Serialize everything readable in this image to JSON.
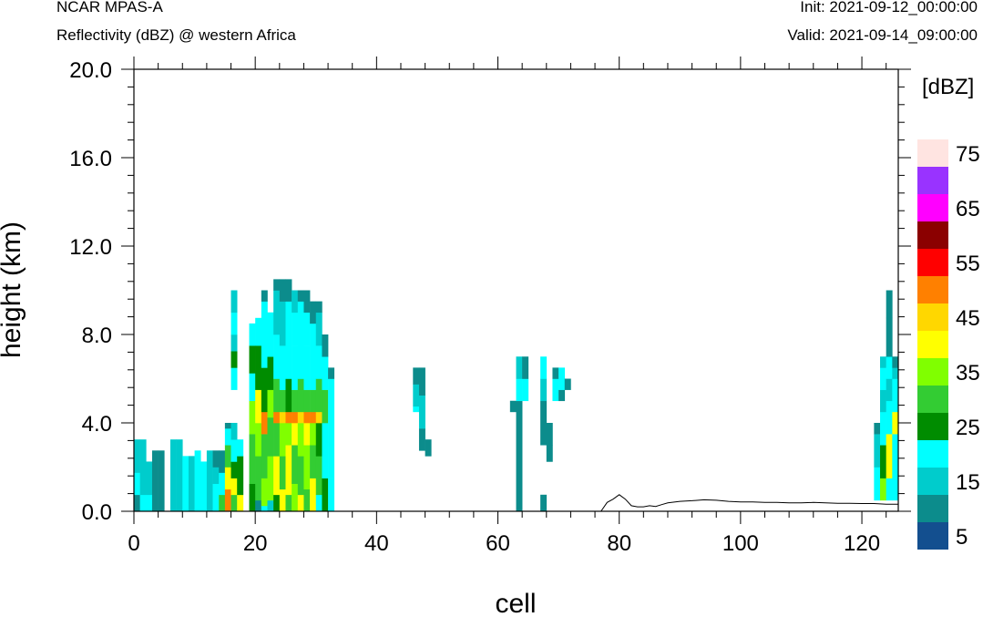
{
  "header": {
    "model": "NCAR MPAS-A",
    "field": "Reflectivity (dBZ) @ western Africa",
    "init": "Init: 2021-09-12_00:00:00",
    "valid": "Valid: 2021-09-14_09:00:00"
  },
  "colorbar": {
    "title": "[dBZ]",
    "labels": [
      "5",
      "15",
      "25",
      "35",
      "45",
      "55",
      "65",
      "75"
    ],
    "colors": [
      "#134f8f",
      "#0c8c8c",
      "#00cccc",
      "#00ffff",
      "#008c00",
      "#33cc33",
      "#80ff00",
      "#ffff00",
      "#ffd700",
      "#ff8000",
      "#ff0000",
      "#8b0000",
      "#ff00ff",
      "#9933ff",
      "#ffe4e1"
    ]
  },
  "chart_data": {
    "type": "heatmap",
    "xlabel": "cell",
    "ylabel": "height (km)",
    "xlim": [
      0,
      126
    ],
    "ylim": [
      0,
      20
    ],
    "x_ticks": [
      "0",
      "20",
      "40",
      "60",
      "80",
      "100",
      "120"
    ],
    "y_ticks": [
      "0.0",
      "4.0",
      "8.0",
      "12.0",
      "16.0",
      "20.0"
    ],
    "cell_height_km": 0.25,
    "value_unit": "dBZ",
    "columns": [
      {
        "x": 0,
        "segments": [
          [
            0,
            3,
            5
          ],
          [
            3,
            7,
            15
          ],
          [
            7,
            13,
            10
          ]
        ]
      },
      {
        "x": 1,
        "segments": [
          [
            0,
            3,
            15
          ],
          [
            3,
            13,
            10
          ]
        ]
      },
      {
        "x": 2,
        "segments": [
          [
            0,
            3,
            15
          ],
          [
            3,
            9,
            10
          ]
        ]
      },
      {
        "x": 3,
        "segments": [
          [
            0,
            11,
            5
          ]
        ]
      },
      {
        "x": 4,
        "segments": [
          [
            0,
            11,
            5
          ]
        ]
      },
      {
        "x": 6,
        "segments": [
          [
            0,
            13,
            10
          ]
        ]
      },
      {
        "x": 7,
        "segments": [
          [
            0,
            13,
            10
          ]
        ]
      },
      {
        "x": 8,
        "segments": [
          [
            0,
            10,
            15
          ]
        ]
      },
      {
        "x": 9,
        "segments": [
          [
            0,
            10,
            10
          ]
        ]
      },
      {
        "x": 10,
        "segments": [
          [
            0,
            11,
            15
          ]
        ]
      },
      {
        "x": 11,
        "segments": [
          [
            0,
            9,
            15
          ]
        ]
      },
      {
        "x": 12,
        "segments": [
          [
            0,
            11,
            10
          ]
        ]
      },
      {
        "x": 13,
        "segments": [
          [
            0,
            5,
            15
          ],
          [
            5,
            8,
            10
          ],
          [
            8,
            11,
            5
          ]
        ]
      },
      {
        "x": 14,
        "segments": [
          [
            0,
            3,
            25
          ],
          [
            3,
            7,
            15
          ],
          [
            7,
            11,
            5
          ]
        ]
      },
      {
        "x": 15,
        "segments": [
          [
            0,
            4,
            45
          ],
          [
            4,
            8,
            35
          ],
          [
            8,
            12,
            25
          ],
          [
            12,
            15,
            15
          ],
          [
            15,
            16,
            5
          ]
        ]
      },
      {
        "x": 16,
        "segments": [
          [
            0,
            3,
            25
          ],
          [
            3,
            6,
            35
          ],
          [
            6,
            9,
            20
          ],
          [
            9,
            13,
            15
          ],
          [
            13,
            16,
            10
          ],
          [
            22,
            26,
            15
          ],
          [
            26,
            29,
            20
          ],
          [
            29,
            32,
            10
          ],
          [
            32,
            36,
            15
          ],
          [
            36,
            40,
            10
          ]
        ]
      },
      {
        "x": 17,
        "segments": [
          [
            0,
            3,
            35
          ],
          [
            3,
            10,
            20
          ],
          [
            10,
            13,
            15
          ]
        ]
      },
      {
        "x": 19,
        "segments": [
          [
            0,
            5,
            20
          ],
          [
            5,
            14,
            25
          ],
          [
            14,
            20,
            30
          ],
          [
            20,
            25,
            15
          ],
          [
            25,
            30,
            20
          ],
          [
            30,
            34,
            15
          ]
        ]
      },
      {
        "x": 20,
        "segments": [
          [
            0,
            2,
            5
          ],
          [
            2,
            10,
            25
          ],
          [
            10,
            16,
            30
          ],
          [
            16,
            22,
            35
          ],
          [
            22,
            30,
            20
          ],
          [
            30,
            35,
            15
          ]
        ]
      },
      {
        "x": 21,
        "segments": [
          [
            0,
            1,
            15
          ],
          [
            1,
            6,
            30
          ],
          [
            6,
            14,
            25
          ],
          [
            14,
            18,
            45
          ],
          [
            18,
            26,
            20
          ],
          [
            26,
            38,
            15
          ],
          [
            38,
            40,
            5
          ]
        ]
      },
      {
        "x": 22,
        "segments": [
          [
            0,
            2,
            10
          ],
          [
            2,
            10,
            30
          ],
          [
            10,
            17,
            25
          ],
          [
            17,
            22,
            30
          ],
          [
            22,
            28,
            20
          ],
          [
            28,
            36,
            15
          ]
        ]
      },
      {
        "x": 23,
        "segments": [
          [
            0,
            3,
            20
          ],
          [
            3,
            10,
            35
          ],
          [
            10,
            16,
            25
          ],
          [
            16,
            18,
            45
          ],
          [
            18,
            24,
            25
          ],
          [
            24,
            32,
            15
          ],
          [
            32,
            40,
            10
          ],
          [
            40,
            42,
            5
          ]
        ]
      },
      {
        "x": 24,
        "segments": [
          [
            0,
            4,
            35
          ],
          [
            4,
            10,
            25
          ],
          [
            10,
            16,
            30
          ],
          [
            16,
            18,
            40
          ],
          [
            18,
            22,
            25
          ],
          [
            22,
            30,
            15
          ],
          [
            30,
            38,
            10
          ],
          [
            38,
            42,
            5
          ]
        ]
      },
      {
        "x": 25,
        "segments": [
          [
            0,
            3,
            25
          ],
          [
            3,
            12,
            35
          ],
          [
            12,
            16,
            30
          ],
          [
            16,
            18,
            45
          ],
          [
            18,
            24,
            20
          ],
          [
            24,
            32,
            15
          ],
          [
            32,
            38,
            15
          ],
          [
            38,
            42,
            5
          ]
        ]
      },
      {
        "x": 26,
        "segments": [
          [
            0,
            5,
            30
          ],
          [
            5,
            12,
            25
          ],
          [
            12,
            16,
            35
          ],
          [
            16,
            18,
            45
          ],
          [
            18,
            22,
            25
          ],
          [
            22,
            30,
            15
          ],
          [
            30,
            36,
            15
          ],
          [
            36,
            40,
            10
          ]
        ]
      },
      {
        "x": 27,
        "segments": [
          [
            0,
            3,
            35
          ],
          [
            3,
            10,
            25
          ],
          [
            10,
            16,
            30
          ],
          [
            16,
            18,
            40
          ],
          [
            18,
            24,
            25
          ],
          [
            24,
            32,
            15
          ],
          [
            32,
            38,
            15
          ],
          [
            38,
            40,
            5
          ]
        ]
      },
      {
        "x": 28,
        "segments": [
          [
            0,
            4,
            25
          ],
          [
            4,
            12,
            30
          ],
          [
            12,
            16,
            35
          ],
          [
            16,
            18,
            45
          ],
          [
            18,
            22,
            25
          ],
          [
            22,
            30,
            15
          ],
          [
            30,
            36,
            15
          ],
          [
            36,
            40,
            5
          ]
        ]
      },
      {
        "x": 29,
        "segments": [
          [
            0,
            6,
            35
          ],
          [
            6,
            12,
            25
          ],
          [
            12,
            16,
            30
          ],
          [
            16,
            18,
            45
          ],
          [
            18,
            22,
            25
          ],
          [
            22,
            28,
            15
          ],
          [
            28,
            34,
            15
          ],
          [
            34,
            38,
            5
          ]
        ]
      },
      {
        "x": 30,
        "segments": [
          [
            0,
            3,
            15
          ],
          [
            3,
            10,
            25
          ],
          [
            10,
            16,
            20
          ],
          [
            16,
            18,
            40
          ],
          [
            18,
            24,
            25
          ],
          [
            24,
            30,
            15
          ],
          [
            30,
            36,
            10
          ],
          [
            36,
            38,
            5
          ]
        ]
      },
      {
        "x": 31,
        "segments": [
          [
            0,
            6,
            20
          ],
          [
            6,
            16,
            15
          ],
          [
            16,
            22,
            25
          ],
          [
            22,
            28,
            15
          ],
          [
            28,
            32,
            5
          ]
        ]
      },
      {
        "x": 32,
        "segments": [
          [
            0,
            6,
            15
          ],
          [
            6,
            12,
            15
          ],
          [
            12,
            20,
            15
          ],
          [
            20,
            24,
            15
          ],
          [
            24,
            26,
            5
          ]
        ]
      },
      {
        "x": 46,
        "segments": [
          [
            18,
            19,
            15
          ],
          [
            19,
            23,
            10
          ],
          [
            23,
            26,
            5
          ]
        ]
      },
      {
        "x": 47,
        "segments": [
          [
            11,
            15,
            5
          ],
          [
            15,
            21,
            10
          ],
          [
            21,
            26,
            5
          ]
        ]
      },
      {
        "x": 48,
        "segments": [
          [
            10,
            13,
            5
          ]
        ]
      },
      {
        "x": 62,
        "segments": [
          [
            18,
            20,
            5
          ]
        ]
      },
      {
        "x": 63,
        "segments": [
          [
            0,
            20,
            5
          ],
          [
            20,
            24,
            15
          ],
          [
            24,
            28,
            10
          ]
        ]
      },
      {
        "x": 64,
        "segments": [
          [
            20,
            24,
            15
          ],
          [
            24,
            28,
            5
          ]
        ]
      },
      {
        "x": 67,
        "segments": [
          [
            0,
            3,
            5
          ],
          [
            12,
            20,
            5
          ],
          [
            20,
            24,
            10
          ],
          [
            24,
            28,
            15
          ]
        ]
      },
      {
        "x": 68,
        "segments": [
          [
            9,
            12,
            5
          ],
          [
            12,
            16,
            5
          ]
        ]
      },
      {
        "x": 69,
        "segments": [
          [
            20,
            24,
            15
          ],
          [
            24,
            26,
            5
          ]
        ]
      },
      {
        "x": 70,
        "segments": [
          [
            20,
            22,
            5
          ],
          [
            22,
            26,
            15
          ]
        ]
      },
      {
        "x": 71,
        "segments": [
          [
            22,
            24,
            5
          ]
        ]
      },
      {
        "x": 122,
        "segments": [
          [
            2,
            8,
            15
          ],
          [
            8,
            14,
            10
          ],
          [
            14,
            16,
            5
          ]
        ]
      },
      {
        "x": 123,
        "segments": [
          [
            2,
            6,
            30
          ],
          [
            6,
            12,
            20
          ],
          [
            12,
            18,
            15
          ],
          [
            18,
            22,
            10
          ],
          [
            22,
            26,
            15
          ],
          [
            26,
            28,
            10
          ]
        ]
      },
      {
        "x": 124,
        "segments": [
          [
            2,
            6,
            15
          ],
          [
            6,
            14,
            35
          ],
          [
            14,
            20,
            15
          ],
          [
            20,
            24,
            10
          ],
          [
            24,
            28,
            15
          ],
          [
            28,
            35,
            5
          ],
          [
            35,
            40,
            5
          ]
        ]
      },
      {
        "x": 125,
        "segments": [
          [
            2,
            6,
            15
          ],
          [
            6,
            14,
            15
          ],
          [
            14,
            18,
            35
          ],
          [
            18,
            24,
            15
          ],
          [
            24,
            26,
            10
          ],
          [
            26,
            28,
            5
          ]
        ]
      }
    ],
    "terrain": [
      [
        0,
        0
      ],
      [
        77,
        0
      ],
      [
        78,
        0.4
      ],
      [
        79,
        0.55
      ],
      [
        80,
        0.75
      ],
      [
        81,
        0.55
      ],
      [
        82,
        0.25
      ],
      [
        83,
        0.2
      ],
      [
        84,
        0.2
      ],
      [
        85,
        0.25
      ],
      [
        86,
        0.22
      ],
      [
        87,
        0.3
      ],
      [
        88,
        0.38
      ],
      [
        90,
        0.45
      ],
      [
        92,
        0.48
      ],
      [
        94,
        0.52
      ],
      [
        96,
        0.5
      ],
      [
        98,
        0.45
      ],
      [
        100,
        0.42
      ],
      [
        102,
        0.42
      ],
      [
        104,
        0.4
      ],
      [
        106,
        0.4
      ],
      [
        108,
        0.38
      ],
      [
        110,
        0.38
      ],
      [
        112,
        0.4
      ],
      [
        114,
        0.38
      ],
      [
        116,
        0.36
      ],
      [
        118,
        0.36
      ],
      [
        120,
        0.35
      ],
      [
        122,
        0.35
      ],
      [
        124,
        0.32
      ],
      [
        126,
        0.32
      ]
    ]
  }
}
